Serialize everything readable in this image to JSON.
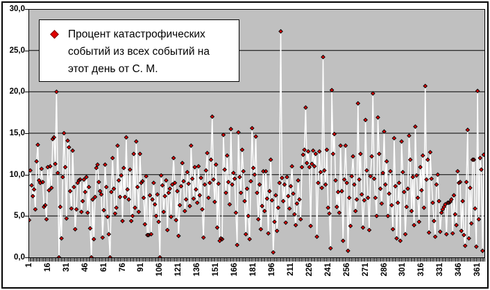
{
  "legend": {
    "line1": "Процент катастрофических",
    "line2": "событий из всех событий на",
    "line3": "этот день от С. М."
  },
  "chart_data": {
    "type": "line",
    "title": "",
    "xlabel": "",
    "ylabel": "",
    "grid": true,
    "legend_position": "top-left-inside",
    "legend_entries": [
      "Процент катастрофических событий из всех событий на этот день от С. М."
    ],
    "plot_background_color": "#c0c0c0",
    "gridline_color": "#000000",
    "x_range": [
      1,
      366
    ],
    "ylim": [
      0,
      30
    ],
    "x_tick_labels": [
      "1",
      "16",
      "31",
      "46",
      "61",
      "76",
      "91",
      "106",
      "121",
      "136",
      "151",
      "166",
      "181",
      "196",
      "211",
      "226",
      "241",
      "256",
      "271",
      "286",
      "301",
      "316",
      "331",
      "346",
      "361"
    ],
    "y_ticks": [
      {
        "value": 0,
        "label": "0,0"
      },
      {
        "value": 5,
        "label": "5,0"
      },
      {
        "value": 10,
        "label": "10,0"
      },
      {
        "value": 15,
        "label": "15,0"
      },
      {
        "value": 20,
        "label": "20,0"
      },
      {
        "value": 25,
        "label": "25,0"
      },
      {
        "value": 30,
        "label": "30,0"
      }
    ],
    "series": [
      {
        "name": "Процент катастрофических событий из всех событий на этот день от С. М.",
        "marker": "diamond",
        "marker_color": "#e00000",
        "marker_edge_color": "#000000",
        "line_color": "#ffffff",
        "x_start": 1,
        "x_step": 1,
        "values": [
          4.5,
          10.5,
          8.7,
          7.4,
          8.2,
          5.8,
          11.6,
          13.6,
          9.3,
          9.0,
          10.7,
          9.1,
          6.1,
          6.3,
          4.6,
          10.9,
          8.1,
          11.0,
          8.4,
          14.3,
          14.5,
          11.3,
          20.0,
          10.2,
          0.0,
          6.1,
          2.3,
          9.7,
          15.0,
          10.9,
          4.7,
          14.1,
          13.3,
          8.0,
          5.9,
          12.9,
          8.5,
          3.4,
          5.8,
          9.0,
          9.3,
          9.4,
          5.5,
          6.8,
          9.4,
          7.9,
          9.7,
          5.4,
          8.5,
          3.5,
          0.0,
          7.0,
          2.2,
          7.3,
          10.8,
          11.2,
          9.1,
          8.0,
          7.6,
          2.4,
          5.7,
          11.2,
          8.5,
          4.9,
          2.8,
          0.0,
          7.9,
          12.0,
          8.3,
          5.3,
          6.0,
          13.5,
          9.3,
          7.3,
          9.9,
          4.4,
          10.8,
          7.3,
          14.5,
          8.2,
          7.0,
          10.6,
          4.4,
          5.0,
          12.5,
          6.0,
          14.0,
          8.5,
          5.5,
          12.5,
          9.0,
          9.2,
          7.2,
          4.0,
          9.8,
          2.7,
          2.7,
          7.5,
          2.8,
          7.0,
          9.0,
          6.4,
          5.0,
          7.6,
          4.3,
          0.0,
          9.9,
          8.7,
          5.5,
          7.4,
          9.3,
          3.3,
          7.8,
          8.3,
          4.9,
          8.8,
          12.0,
          9.0,
          4.5,
          8.0,
          2.6,
          6.3,
          8.6,
          11.4,
          9.2,
          5.6,
          7.0,
          10.3,
          8.9,
          6.2,
          13.5,
          9.5,
          7.1,
          10.9,
          8.2,
          6.6,
          11.0,
          7.5,
          9.6,
          5.8,
          2.4,
          8.8,
          10.5,
          12.6,
          7.2,
          9.0,
          11.8,
          17.0,
          9.4,
          6.7,
          11.2,
          3.6,
          8.9,
          2.0,
          2.3,
          2.2,
          14.8,
          10.6,
          7.8,
          12.3,
          9.1,
          6.4,
          15.5,
          8.8,
          10.2,
          9.5,
          5.4,
          1.5,
          15.1,
          9.7,
          7.8,
          13.0,
          10.4,
          6.8,
          2.8,
          8.3,
          5.0,
          2.2,
          9.2,
          15.6,
          10.8,
          10.0,
          14.6,
          7.8,
          4.6,
          8.8,
          3.4,
          6.2,
          10.4,
          5.6,
          10.4,
          7.1,
          2.9,
          8.0,
          11.8,
          6.9,
          0.6,
          4.3,
          7.5,
          3.2,
          6.0,
          9.0,
          27.3,
          9.6,
          6.8,
          8.8,
          4.2,
          9.7,
          7.4,
          5.9,
          8.6,
          11.0,
          7.7,
          5.2,
          3.9,
          6.5,
          9.3,
          7.0,
          4.6,
          10.9,
          12.4,
          13.0,
          18.1,
          11.4,
          12.8,
          10.9,
          3.8,
          11.3,
          12.9,
          11.0,
          12.5,
          2.5,
          9.0,
          12.8,
          10.3,
          8.4,
          24.2,
          10.5,
          8.8,
          13.0,
          6.0,
          5.3,
          1.1,
          20.2,
          12.5,
          14.9,
          9.3,
          6.1,
          7.9,
          5.4,
          13.5,
          8.0,
          2.0,
          9.4,
          13.5,
          9.0,
          0.8,
          7.2,
          3.8,
          9.8,
          12.2,
          8.8,
          5.6,
          7.0,
          18.6,
          9.4,
          12.5,
          7.6,
          3.6,
          6.9,
          16.6,
          10.5,
          7.2,
          3.3,
          9.8,
          12.2,
          19.8,
          9.5,
          7.2,
          5.0,
          16.9,
          12.5,
          8.3,
          6.5,
          10.2,
          15.2,
          8.8,
          11.6,
          5.0,
          7.7,
          10.4,
          6.3,
          3.4,
          14.4,
          8.6,
          2.3,
          6.6,
          9.0,
          2.0,
          14.0,
          10.3,
          7.9,
          2.8,
          6.1,
          8.3,
          14.7,
          11.8,
          5.6,
          9.7,
          3.9,
          15.8,
          9.9,
          7.2,
          4.3,
          10.9,
          8.1,
          12.3,
          6.0,
          20.7,
          9.4,
          11.8,
          3.0,
          12.7,
          9.5,
          6.6,
          4.4,
          2.5,
          8.8,
          10.0,
          6.8,
          3.1,
          5.4,
          5.8,
          6.1,
          6.4,
          2.8,
          6.6,
          6.6,
          6.7,
          7.0,
          2.9,
          7.5,
          5.2,
          3.9,
          10.4,
          9.0,
          9.1,
          3.2,
          6.8,
          2.7,
          1.4,
          9.1,
          15.4,
          2.3,
          8.4,
          4.1,
          11.8,
          11.8,
          5.9,
          1.3,
          20.1,
          4.6,
          12.0,
          10.6,
          0.8,
          12.4
        ]
      }
    ]
  }
}
